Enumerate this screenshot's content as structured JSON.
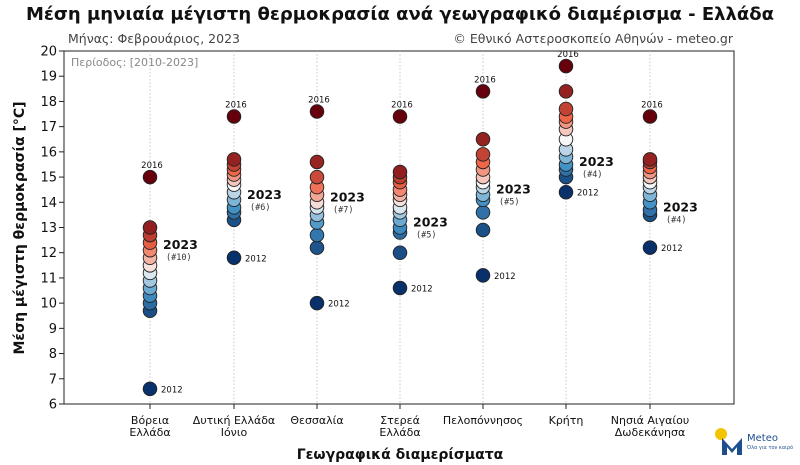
{
  "header": {
    "title": "Μέση μηνιαία μέγιστη θερμοκρασία ανά γεωγραφικό διαμέρισμα - Ελλάδα",
    "month_label": "Μήνας: Φεβρουάριος, 2023",
    "copyright": "© Εθνικό Αστεροσκοπείο Αθηνών - meteo.gr",
    "period": "Περίοδος: [2010-2023]"
  },
  "logo": {
    "name": "Meteo",
    "tagline": "Όλα για τον καιρό",
    "icon": "meteo-logo-icon"
  },
  "colors": {
    "warm_dark": "#67000d",
    "cool_dark": "#08306b",
    "neutral": "#f7f7f7",
    "logo_sun": "#f5c400",
    "logo_blue": "#1d4f8f"
  },
  "chart_data": {
    "type": "scatter",
    "xlabel": "Γεωγραφικά διαμερίσματα",
    "ylabel": "Μέση μέγιστη θερμοκρασία [°C]",
    "ylim": [
      6,
      20
    ],
    "yticks": [
      "6",
      "7",
      "8",
      "9",
      "10",
      "11",
      "12",
      "13",
      "14",
      "15",
      "16",
      "17",
      "18",
      "19",
      "20"
    ],
    "grid": "vertical dotted",
    "categories": [
      {
        "label": [
          "Βόρεια",
          "Ελλάδα"
        ],
        "values": [
          6.6,
          9.7,
          10.0,
          10.3,
          10.6,
          10.9,
          11.2,
          11.5,
          11.8,
          12.1,
          12.4,
          12.7,
          13.0,
          15.0
        ],
        "max_year": "2016",
        "min_year": "2012",
        "current": {
          "year": "2023",
          "rank": "(#10)",
          "value": 12.1
        }
      },
      {
        "label": [
          "Δυτική Ελλάδα",
          "Ιόνιο"
        ],
        "values": [
          11.8,
          13.3,
          13.6,
          13.8,
          14.1,
          14.4,
          14.7,
          14.9,
          15.1,
          15.3,
          15.5,
          15.7,
          17.4
        ],
        "max_year": "2016",
        "min_year": "2012",
        "current": {
          "year": "2023",
          "rank": "(#6)",
          "value": 14.1
        }
      },
      {
        "label": [
          "Θεσσαλία"
        ],
        "values": [
          10.0,
          12.2,
          12.7,
          13.2,
          13.5,
          13.8,
          14.0,
          14.3,
          14.6,
          15.0,
          15.6,
          17.6
        ],
        "max_year": "2016",
        "min_year": "2012",
        "current": {
          "year": "2023",
          "rank": "(#7)",
          "value": 14.0
        }
      },
      {
        "label": [
          "Στερεά",
          "Ελλάδα"
        ],
        "values": [
          10.6,
          12.0,
          12.8,
          13.0,
          13.3,
          13.6,
          13.8,
          14.1,
          14.3,
          14.5,
          14.8,
          15.0,
          15.2,
          17.4
        ],
        "max_year": "2016",
        "min_year": "2012",
        "current": {
          "year": "2023",
          "rank": "(#5)",
          "value": 13.0
        }
      },
      {
        "label": [
          "Πελοπόννησος"
        ],
        "values": [
          11.1,
          12.9,
          13.6,
          14.1,
          14.3,
          14.6,
          14.8,
          15.0,
          15.3,
          15.6,
          15.9,
          16.5,
          18.4
        ],
        "max_year": "2016",
        "min_year": "2012",
        "current": {
          "year": "2023",
          "rank": "(#5)",
          "value": 14.3
        }
      },
      {
        "label": [
          "Κρήτη"
        ],
        "values": [
          14.4,
          15.0,
          15.3,
          15.5,
          15.8,
          16.1,
          16.5,
          16.9,
          17.2,
          17.4,
          17.7,
          18.4,
          19.4
        ],
        "max_year": "2016",
        "min_year": "2012",
        "current": {
          "year": "2023",
          "rank": "(#4)",
          "value": 15.4
        }
      },
      {
        "label": [
          "Νησιά Αιγαίου",
          "Δωδεκάνησα"
        ],
        "values": [
          12.2,
          13.5,
          13.7,
          14.0,
          14.3,
          14.6,
          14.8,
          15.0,
          15.2,
          15.4,
          15.6,
          15.7,
          17.4
        ],
        "max_year": "2016",
        "min_year": "2012",
        "current": {
          "year": "2023",
          "rank": "(#4)",
          "value": 13.6
        }
      }
    ]
  }
}
